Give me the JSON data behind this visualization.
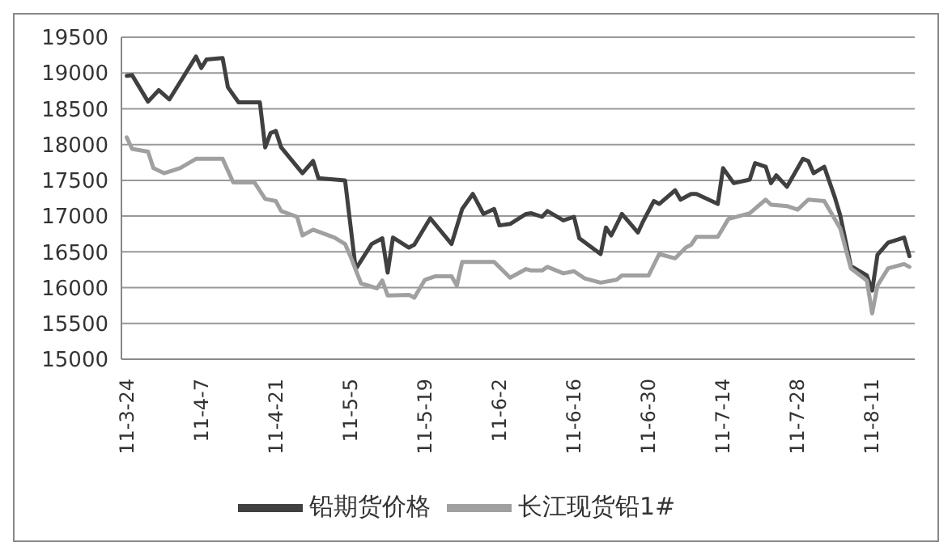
{
  "chart_data": {
    "type": "line",
    "xlim": [
      "--03-23",
      "--08-19"
    ],
    "xticks": [
      {
        "value": "--03-24",
        "label": "11-3-24"
      },
      {
        "value": "--04-07",
        "label": "11-4-7"
      },
      {
        "value": "--04-21",
        "label": "11-4-21"
      },
      {
        "value": "--05-05",
        "label": "11-5-5"
      },
      {
        "value": "--05-19",
        "label": "11-5-19"
      },
      {
        "value": "--06-02",
        "label": "11-6-2"
      },
      {
        "value": "--06-16",
        "label": "11-6-16"
      },
      {
        "value": "--06-30",
        "label": "11-6-30"
      },
      {
        "value": "--07-14",
        "label": "11-7-14"
      },
      {
        "value": "--07-28",
        "label": "11-7-28"
      },
      {
        "value": "--08-11",
        "label": "11-8-11"
      }
    ],
    "ylim": [
      15000,
      19500
    ],
    "yticks": [
      15000,
      15500,
      16000,
      16500,
      17000,
      17500,
      18000,
      18500,
      19000,
      19500
    ],
    "grid": "y",
    "legend": "bottom",
    "marker": "none",
    "line_style": "solid",
    "series": [
      {
        "name": "铅期货价格",
        "color": "#404040",
        "x": [
          "--03-24",
          "--03-25",
          "--03-28",
          "--03-30",
          "--04-01",
          "--04-06",
          "--04-07",
          "--04-08",
          "--04-11",
          "--04-12",
          "--04-14",
          "--04-18",
          "--04-19",
          "--04-20",
          "--04-21",
          "--04-22",
          "--04-26",
          "--04-28",
          "--04-29",
          "--05-04",
          "--05-06",
          "--05-09",
          "--05-11",
          "--05-12",
          "--05-13",
          "--05-16",
          "--05-17",
          "--05-20",
          "--05-24",
          "--05-26",
          "--05-28",
          "--05-30",
          "--06-01",
          "--06-02",
          "--06-04",
          "--06-07",
          "--06-08",
          "--06-10",
          "--06-11",
          "--06-14",
          "--06-16",
          "--06-17",
          "--06-21",
          "--06-22",
          "--06-23",
          "--06-25",
          "--06-28",
          "--06-29",
          "--07-01",
          "--07-02",
          "--07-05",
          "--07-06",
          "--07-08",
          "--07-09",
          "--07-13",
          "--07-14",
          "--07-16",
          "--07-19",
          "--07-20",
          "--07-22",
          "--07-23",
          "--07-24",
          "--07-26",
          "--07-29",
          "--07-30",
          "--07-31",
          "--08-02",
          "--08-04",
          "--08-05",
          "--08-07",
          "--08-10",
          "--08-11",
          "--08-12",
          "--08-14",
          "--08-17",
          "--08-18"
        ],
        "values": [
          18960,
          18970,
          18600,
          18760,
          18630,
          19230,
          19070,
          19190,
          19210,
          18800,
          18590,
          18590,
          17960,
          18160,
          18190,
          17960,
          17600,
          17770,
          17530,
          17500,
          16260,
          16610,
          16690,
          16210,
          16700,
          16560,
          16600,
          16970,
          16610,
          17100,
          17310,
          17030,
          17100,
          16870,
          16890,
          17030,
          17040,
          16990,
          17070,
          16940,
          16990,
          16690,
          16470,
          16840,
          16730,
          17030,
          16770,
          16930,
          17210,
          17170,
          17360,
          17230,
          17310,
          17310,
          17170,
          17670,
          17460,
          17510,
          17740,
          17690,
          17460,
          17570,
          17410,
          17800,
          17770,
          17600,
          17690,
          17260,
          17010,
          16300,
          16170,
          15960,
          16460,
          16630,
          16700,
          16440
        ]
      },
      {
        "name": "长江现货铅1#",
        "color": "#a0a0a0",
        "x": [
          "--03-24",
          "--03-25",
          "--03-28",
          "--03-29",
          "--03-31",
          "--04-03",
          "--04-06",
          "--04-11",
          "--04-13",
          "--04-17",
          "--04-19",
          "--04-21",
          "--04-22",
          "--04-25",
          "--04-26",
          "--04-28",
          "--05-02",
          "--05-04",
          "--05-05",
          "--05-07",
          "--05-10",
          "--05-11",
          "--05-12",
          "--05-16",
          "--05-17",
          "--05-19",
          "--05-21",
          "--05-24",
          "--05-25",
          "--05-26",
          "--06-01",
          "--06-04",
          "--06-07",
          "--06-08",
          "--06-10",
          "--06-11",
          "--06-14",
          "--06-16",
          "--06-18",
          "--06-21",
          "--06-24",
          "--06-25",
          "--06-30",
          "--07-02",
          "--07-05",
          "--07-07",
          "--07-08",
          "--07-09",
          "--07-13",
          "--07-15",
          "--07-19",
          "--07-22",
          "--07-23",
          "--07-26",
          "--07-28",
          "--07-30",
          "--08-02",
          "--08-05",
          "--08-07",
          "--08-10",
          "--08-11",
          "--08-12",
          "--08-14",
          "--08-17",
          "--08-18"
        ],
        "values": [
          18100,
          17940,
          17900,
          17670,
          17600,
          17670,
          17800,
          17800,
          17470,
          17470,
          17240,
          17210,
          17070,
          16990,
          16730,
          16810,
          16700,
          16610,
          16440,
          16060,
          15990,
          16100,
          15890,
          15900,
          15860,
          16110,
          16160,
          16160,
          16030,
          16360,
          16360,
          16140,
          16260,
          16240,
          16240,
          16290,
          16200,
          16230,
          16130,
          16070,
          16110,
          16170,
          16170,
          16470,
          16410,
          16560,
          16600,
          16710,
          16710,
          16960,
          17040,
          17230,
          17160,
          17140,
          17090,
          17230,
          17210,
          16830,
          16270,
          16100,
          15640,
          16030,
          16270,
          16330,
          16290
        ]
      }
    ]
  }
}
